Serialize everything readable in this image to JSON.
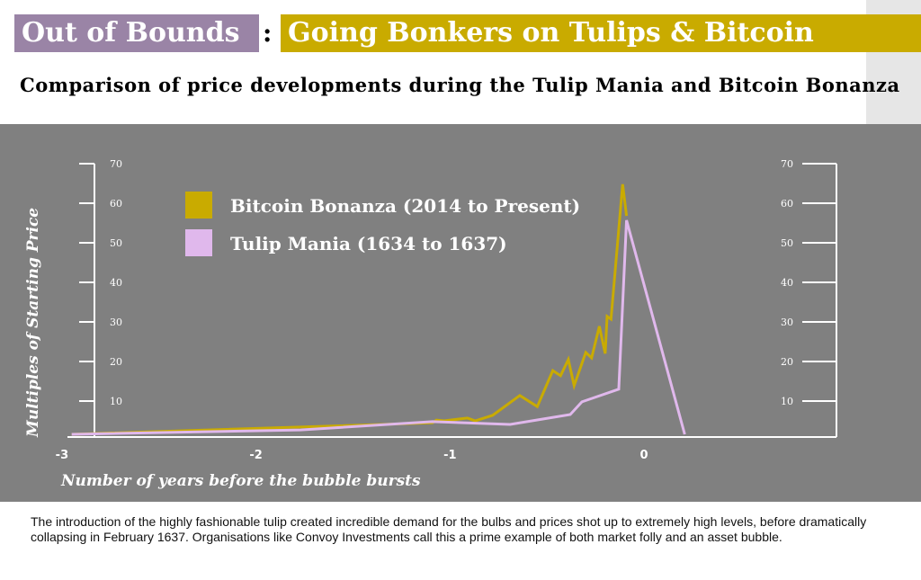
{
  "header": {
    "title_part1": "Out of Bounds",
    "separator": ":",
    "title_part2": "Going Bonkers on Tulips & Bitcoin",
    "subtitle": "Comparison of price developments during the Tulip Mania and Bitcoin Bonanza"
  },
  "caption": "The introduction of the highly fashionable tulip created incredible demand for the bulbs and prices shot up to extremely high levels, before dramatically collapsing in February 1637.  Organisations like Convoy Investments call this a prime example of both market folly and an asset bubble.",
  "chart_data": {
    "type": "line",
    "title": "Comparison of price developments during the Tulip Mania and Bitcoin Bonanza",
    "xlabel": "Number of years before the bubble bursts",
    "ylabel": "Multiples of Starting Price",
    "xlim": [
      -3,
      0.25
    ],
    "ylim": [
      0,
      70
    ],
    "xticks": [
      -3,
      -2,
      -1,
      0
    ],
    "yticks": [
      10,
      20,
      30,
      40,
      50,
      60,
      70
    ],
    "grid": false,
    "legend": "top-left",
    "background": "#808080",
    "series": [
      {
        "name": "Bitcoin Bonanza (2014 to Present)",
        "color": "#c9ab00",
        "points": [
          [
            -2.95,
            1.6
          ],
          [
            -1.09,
            4.5
          ],
          [
            -1.07,
            5.2
          ],
          [
            -1.03,
            5
          ],
          [
            -0.91,
            5.7
          ],
          [
            -0.87,
            5
          ],
          [
            -0.78,
            6.4
          ],
          [
            -0.64,
            11.4
          ],
          [
            -0.55,
            8.6
          ],
          [
            -0.47,
            17.7
          ],
          [
            -0.43,
            16.4
          ],
          [
            -0.39,
            20.5
          ],
          [
            -0.36,
            13.9
          ],
          [
            -0.3,
            22.3
          ],
          [
            -0.27,
            20.9
          ],
          [
            -0.23,
            28.9
          ],
          [
            -0.2,
            22
          ],
          [
            -0.19,
            31.4
          ],
          [
            -0.17,
            30.7
          ],
          [
            -0.11,
            64.8
          ],
          [
            -0.09,
            56.8
          ]
        ]
      },
      {
        "name": "Tulip Mania (1634 to 1637)",
        "color": "#e0b8ec",
        "points": [
          [
            -2.95,
            1.6
          ],
          [
            -1.77,
            2.7
          ],
          [
            -1.09,
            4.8
          ],
          [
            -0.69,
            4.1
          ],
          [
            -0.38,
            6.6
          ],
          [
            -0.32,
            9.8
          ],
          [
            -0.13,
            13
          ],
          [
            -0.09,
            55.7
          ],
          [
            0.21,
            1.6
          ]
        ]
      }
    ]
  }
}
